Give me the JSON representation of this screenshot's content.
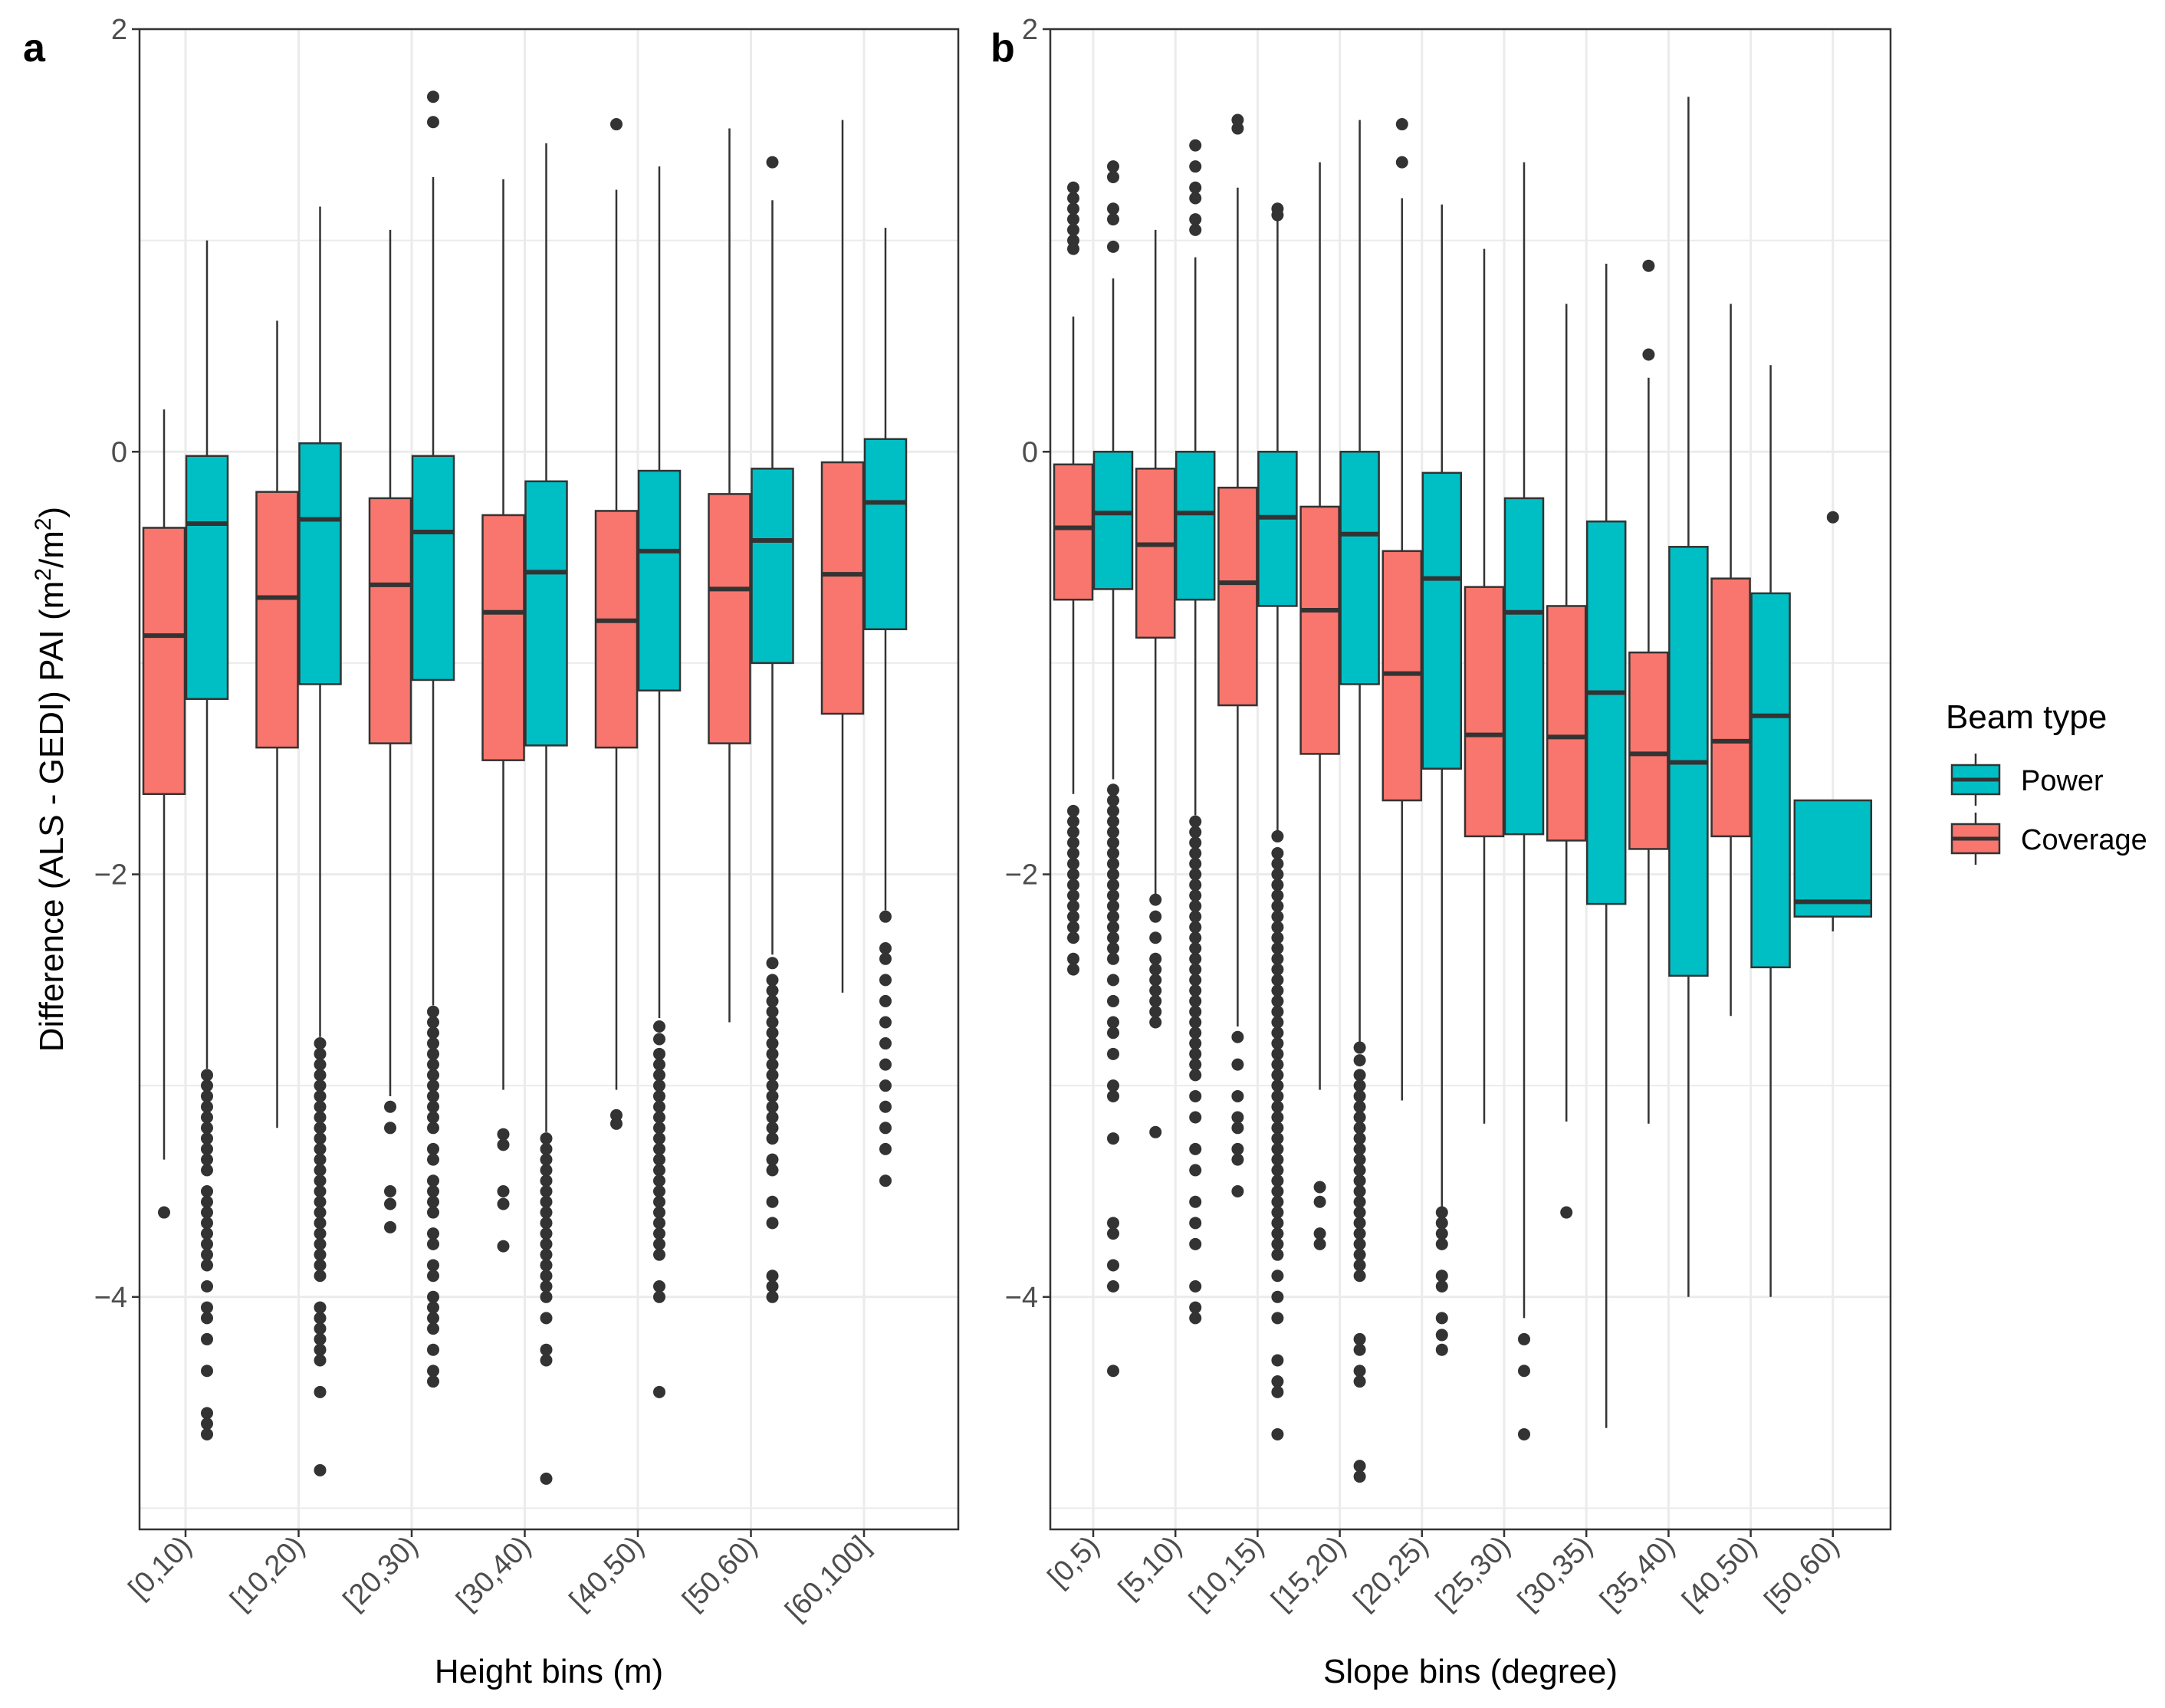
{
  "chart_data": [
    {
      "type": "boxplot",
      "panel_label": "a",
      "ylabel_prefix": "Difference (ALS - GEDI) PAI (m",
      "ylabel_sup1": "2",
      "ylabel_mid": "/m",
      "ylabel_sup2": "2",
      "ylabel_suffix": ")",
      "xlabel": "Height bins (m)",
      "ylim": [
        -5.1,
        2.0
      ],
      "yticks": [
        -4,
        -2,
        0,
        2
      ],
      "ytick_labels": [
        "−4",
        "−2",
        "0",
        "2"
      ],
      "categories": [
        "[0,10)",
        "[10,20)",
        "[20,30)",
        "[30,40)",
        "[40,50)",
        "[50,60)",
        "[60,100]"
      ],
      "series": [
        {
          "name": "Coverage",
          "boxes": [
            {
              "q1": -1.62,
              "median": -0.87,
              "q3": -0.36,
              "lower": -3.35,
              "upper": 0.2,
              "outliers": [
                -3.6
              ]
            },
            {
              "q1": -1.4,
              "median": -0.69,
              "q3": -0.19,
              "lower": -3.2,
              "upper": 0.62,
              "outliers": []
            },
            {
              "q1": -1.38,
              "median": -0.63,
              "q3": -0.22,
              "lower": -3.05,
              "upper": 1.05,
              "outliers": [
                -3.1,
                -3.2,
                -3.5,
                -3.56,
                -3.67
              ]
            },
            {
              "q1": -1.46,
              "median": -0.76,
              "q3": -0.3,
              "lower": -3.02,
              "upper": 1.29,
              "outliers": [
                -3.23,
                -3.28,
                -3.5,
                -3.56,
                -3.76
              ]
            },
            {
              "q1": -1.4,
              "median": -0.8,
              "q3": -0.28,
              "lower": -3.02,
              "upper": 1.24,
              "outliers": [
                1.55,
                -3.14,
                -3.18
              ]
            },
            {
              "q1": -1.38,
              "median": -0.65,
              "q3": -0.2,
              "lower": -2.7,
              "upper": 1.53,
              "outliers": []
            },
            {
              "q1": -1.24,
              "median": -0.58,
              "q3": -0.05,
              "lower": -2.56,
              "upper": 1.57,
              "outliers": []
            }
          ]
        },
        {
          "name": "Power",
          "boxes": [
            {
              "q1": -1.17,
              "median": -0.34,
              "q3": -0.02,
              "lower": -2.92,
              "upper": 1.0,
              "outliers": [
                -2.95,
                -3.0,
                -3.05,
                -3.1,
                -3.15,
                -3.2,
                -3.25,
                -3.3,
                -3.35,
                -3.4,
                -3.5,
                -3.55,
                -3.6,
                -3.65,
                -3.7,
                -3.75,
                -3.8,
                -3.85,
                -3.95,
                -4.05,
                -4.1,
                -4.2,
                -4.35,
                -4.55,
                -4.6,
                -4.65
              ]
            },
            {
              "q1": -1.1,
              "median": -0.32,
              "q3": 0.04,
              "lower": -2.77,
              "upper": 1.16,
              "outliers": [
                -2.8,
                -2.85,
                -2.9,
                -2.95,
                -3.0,
                -3.05,
                -3.1,
                -3.15,
                -3.2,
                -3.25,
                -3.3,
                -3.35,
                -3.4,
                -3.45,
                -3.5,
                -3.55,
                -3.6,
                -3.65,
                -3.7,
                -3.75,
                -3.8,
                -3.85,
                -3.9,
                -4.05,
                -4.1,
                -4.15,
                -4.2,
                -4.25,
                -4.3,
                -4.45,
                -4.82
              ]
            },
            {
              "q1": -1.08,
              "median": -0.38,
              "q3": -0.02,
              "lower": -2.62,
              "upper": 1.3,
              "outliers": [
                1.56,
                1.68,
                -2.65,
                -2.7,
                -2.75,
                -2.8,
                -2.85,
                -2.9,
                -2.95,
                -3.0,
                -3.05,
                -3.1,
                -3.15,
                -3.2,
                -3.3,
                -3.35,
                -3.45,
                -3.5,
                -3.55,
                -3.6,
                -3.7,
                -3.75,
                -3.85,
                -3.9,
                -4.0,
                -4.05,
                -4.1,
                -4.15,
                -4.25,
                -4.35,
                -4.4
              ]
            },
            {
              "q1": -1.39,
              "median": -0.57,
              "q3": -0.14,
              "lower": -3.22,
              "upper": 1.46,
              "outliers": [
                -3.25,
                -3.3,
                -3.35,
                -3.4,
                -3.45,
                -3.5,
                -3.55,
                -3.6,
                -3.65,
                -3.7,
                -3.75,
                -3.8,
                -3.85,
                -3.9,
                -3.95,
                -4.0,
                -4.1,
                -4.25,
                -4.3,
                -4.86
              ]
            },
            {
              "q1": -1.13,
              "median": -0.47,
              "q3": -0.09,
              "lower": -2.68,
              "upper": 1.35,
              "outliers": [
                -2.72,
                -2.78,
                -2.85,
                -2.9,
                -2.95,
                -3.0,
                -3.05,
                -3.1,
                -3.15,
                -3.2,
                -3.25,
                -3.3,
                -3.35,
                -3.4,
                -3.45,
                -3.5,
                -3.55,
                -3.6,
                -3.65,
                -3.7,
                -3.75,
                -3.8,
                -3.95,
                -4.0,
                -4.45
              ]
            },
            {
              "q1": -1.0,
              "median": -0.42,
              "q3": -0.08,
              "lower": -2.38,
              "upper": 1.19,
              "outliers": [
                1.37,
                -2.42,
                -2.5,
                -2.55,
                -2.6,
                -2.65,
                -2.7,
                -2.75,
                -2.8,
                -2.85,
                -2.9,
                -2.95,
                -3.0,
                -3.05,
                -3.1,
                -3.15,
                -3.2,
                -3.25,
                -3.35,
                -3.4,
                -3.55,
                -3.65,
                -3.9,
                -3.95,
                -4.0
              ]
            },
            {
              "q1": -0.84,
              "median": -0.24,
              "q3": 0.06,
              "lower": -2.17,
              "upper": 1.06,
              "outliers": [
                -2.2,
                -2.35,
                -2.4,
                -2.5,
                -2.6,
                -2.7,
                -2.8,
                -2.9,
                -3.0,
                -3.1,
                -3.2,
                -3.3,
                -3.45
              ]
            }
          ]
        }
      ]
    },
    {
      "type": "boxplot",
      "panel_label": "b",
      "xlabel": "Slope bins (degree)",
      "ylim": [
        -5.1,
        2.0
      ],
      "yticks": [
        -4,
        -2,
        0,
        2
      ],
      "ytick_labels": [
        "−4",
        "−2",
        "0",
        "2"
      ],
      "categories": [
        "[0,5)",
        "[5,10)",
        "[10,15)",
        "[15,20)",
        "[20,25)",
        "[25,30)",
        "[30,35)",
        "[35,40)",
        "[40,50)",
        "[50,60)"
      ],
      "series": [
        {
          "name": "Coverage",
          "boxes": [
            {
              "q1": -0.7,
              "median": -0.36,
              "q3": -0.06,
              "lower": -1.62,
              "upper": 0.64,
              "outliers": [
                1.05,
                1.1,
                1.15,
                1.2,
                1.25,
                0.96,
                1.0,
                -1.7,
                -1.75,
                -1.8,
                -1.85,
                -1.9,
                -1.95,
                -2.0,
                -2.05,
                -2.1,
                -2.15,
                -2.2,
                -2.25,
                -2.3,
                -2.4,
                -2.45
              ]
            },
            {
              "q1": -0.88,
              "median": -0.44,
              "q3": -0.08,
              "lower": -2.1,
              "upper": 1.05,
              "outliers": [
                -2.12,
                -2.2,
                -2.3,
                -2.4,
                -2.45,
                -2.5,
                -2.55,
                -2.6,
                -2.65,
                -2.7,
                -3.22
              ]
            },
            {
              "q1": -1.2,
              "median": -0.62,
              "q3": -0.17,
              "lower": -2.72,
              "upper": 1.25,
              "outliers": [
                1.53,
                1.57,
                -2.77,
                -2.9,
                -3.05,
                -3.15,
                -3.2,
                -3.3,
                -3.35,
                -3.5
              ]
            },
            {
              "q1": -1.43,
              "median": -0.75,
              "q3": -0.26,
              "lower": -3.02,
              "upper": 1.37,
              "outliers": [
                -3.48,
                -3.55,
                -3.7,
                -3.75
              ]
            },
            {
              "q1": -1.65,
              "median": -1.05,
              "q3": -0.47,
              "lower": -3.07,
              "upper": 1.2,
              "outliers": [
                1.55,
                1.37
              ]
            },
            {
              "q1": -1.82,
              "median": -1.34,
              "q3": -0.64,
              "lower": -3.18,
              "upper": 0.96,
              "outliers": []
            },
            {
              "q1": -1.84,
              "median": -1.35,
              "q3": -0.73,
              "lower": -3.17,
              "upper": 0.7,
              "outliers": [
                -3.6
              ]
            },
            {
              "q1": -1.88,
              "median": -1.43,
              "q3": -0.95,
              "lower": -3.18,
              "upper": 0.35,
              "outliers": [
                0.88,
                0.46
              ]
            },
            {
              "q1": -1.82,
              "median": -1.37,
              "q3": -0.6,
              "lower": -2.67,
              "upper": 0.7,
              "outliers": []
            }
          ]
        },
        {
          "name": "Power",
          "boxes": [
            {
              "q1": -0.65,
              "median": -0.29,
              "q3": 0.0,
              "lower": -1.55,
              "upper": 0.82,
              "outliers": [
                1.35,
                1.3,
                1.15,
                1.1,
                0.97,
                -1.6,
                -1.65,
                -1.7,
                -1.75,
                -1.8,
                -1.85,
                -1.9,
                -1.95,
                -2.0,
                -2.05,
                -2.1,
                -2.15,
                -2.2,
                -2.25,
                -2.3,
                -2.35,
                -2.4,
                -2.5,
                -2.6,
                -2.7,
                -2.75,
                -2.85,
                -3.0,
                -3.05,
                -3.25,
                -3.65,
                -3.7,
                -3.85,
                -3.95,
                -4.35
              ]
            },
            {
              "q1": -0.7,
              "median": -0.29,
              "q3": 0.0,
              "lower": -1.72,
              "upper": 0.92,
              "outliers": [
                1.45,
                1.35,
                1.25,
                1.2,
                1.1,
                1.05,
                -1.75,
                -1.8,
                -1.85,
                -1.9,
                -1.95,
                -2.0,
                -2.05,
                -2.1,
                -2.15,
                -2.2,
                -2.25,
                -2.3,
                -2.35,
                -2.4,
                -2.45,
                -2.5,
                -2.55,
                -2.6,
                -2.65,
                -2.7,
                -2.75,
                -2.8,
                -2.85,
                -2.9,
                -2.95,
                -3.05,
                -3.15,
                -3.3,
                -3.4,
                -3.55,
                -3.65,
                -3.75,
                -3.95,
                -4.05,
                -4.1
              ]
            },
            {
              "q1": -0.73,
              "median": -0.31,
              "q3": 0.0,
              "lower": -1.8,
              "upper": 1.1,
              "outliers": [
                1.15,
                1.12,
                -1.82,
                -1.9,
                -1.95,
                -2.0,
                -2.05,
                -2.1,
                -2.15,
                -2.2,
                -2.25,
                -2.3,
                -2.35,
                -2.4,
                -2.45,
                -2.5,
                -2.55,
                -2.6,
                -2.65,
                -2.7,
                -2.75,
                -2.8,
                -2.85,
                -2.9,
                -2.95,
                -3.0,
                -3.05,
                -3.1,
                -3.15,
                -3.2,
                -3.25,
                -3.3,
                -3.35,
                -3.4,
                -3.45,
                -3.5,
                -3.55,
                -3.6,
                -3.65,
                -3.7,
                -3.75,
                -3.8,
                -3.9,
                -4.0,
                -4.1,
                -4.3,
                -4.4,
                -4.45,
                -4.65
              ]
            },
            {
              "q1": -1.1,
              "median": -0.39,
              "q3": 0.0,
              "lower": -2.8,
              "upper": 1.57,
              "outliers": [
                -2.82,
                -2.88,
                -2.95,
                -3.0,
                -3.05,
                -3.1,
                -3.15,
                -3.2,
                -3.25,
                -3.3,
                -3.35,
                -3.4,
                -3.45,
                -3.5,
                -3.55,
                -3.6,
                -3.65,
                -3.7,
                -3.75,
                -3.8,
                -3.85,
                -3.9,
                -4.2,
                -4.25,
                -4.35,
                -4.4,
                -4.8,
                -4.85
              ]
            },
            {
              "q1": -1.5,
              "median": -0.6,
              "q3": -0.1,
              "lower": -3.58,
              "upper": 1.17,
              "outliers": [
                -3.6,
                -3.65,
                -3.7,
                -3.75,
                -3.9,
                -3.95,
                -4.1,
                -4.18,
                -4.25
              ]
            },
            {
              "q1": -1.81,
              "median": -0.76,
              "q3": -0.22,
              "lower": -4.1,
              "upper": 1.37,
              "outliers": [
                -4.2,
                -4.35,
                -4.65
              ]
            },
            {
              "q1": -2.14,
              "median": -1.14,
              "q3": -0.33,
              "lower": -4.62,
              "upper": 0.89,
              "outliers": []
            },
            {
              "q1": -2.48,
              "median": -1.47,
              "q3": -0.45,
              "lower": -4.0,
              "upper": 1.68,
              "outliers": []
            },
            {
              "q1": -2.44,
              "median": -1.25,
              "q3": -0.67,
              "lower": -4.0,
              "upper": 0.41,
              "outliers": []
            },
            {
              "q1": -2.2,
              "median": -2.13,
              "q3": -1.65,
              "lower": -2.27,
              "upper": -1.65,
              "outliers": [
                -0.31
              ]
            }
          ]
        }
      ]
    }
  ],
  "legend": {
    "title": "Beam type",
    "items": [
      {
        "name": "Power",
        "color": "#00BFC4"
      },
      {
        "name": "Coverage",
        "color": "#F8766D"
      }
    ]
  },
  "colors": {
    "Coverage": "#F8766D",
    "Power": "#00BFC4",
    "line": "#333333",
    "grid": "#ebebeb",
    "panel_border": "#333333"
  }
}
